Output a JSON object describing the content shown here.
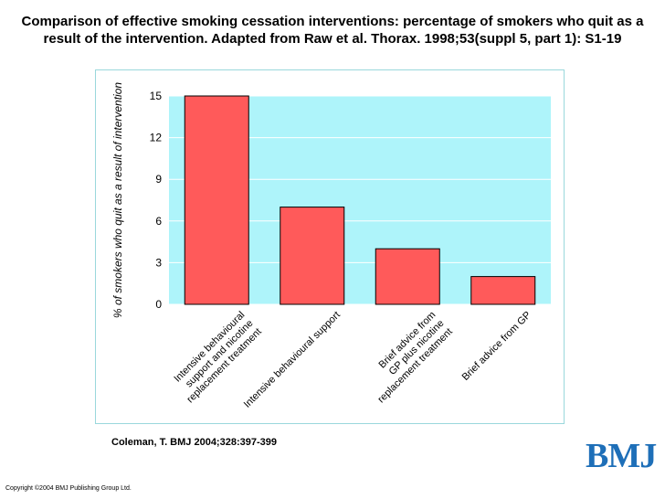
{
  "title": "Comparison of effective smoking cessation interventions: percentage of smokers who quit as a result of the intervention. Adapted from Raw et al. Thorax. 1998;53(suppl 5, part 1): S1-19",
  "citation": "Coleman, T. BMJ 2004;328:397-399",
  "copyright": "Copyright ©2004 BMJ Publishing Group Ltd.",
  "logo_text": "BMJ",
  "colors": {
    "plot_bg": "#aef4fa",
    "bar_fill": "#ff5a5a",
    "bar_stroke": "#000000",
    "grid": "#ffffff",
    "frame": "#9ad8dc",
    "logo": "#1e6fb8"
  },
  "chart_data": {
    "type": "bar",
    "title": "",
    "xlabel": "",
    "ylabel": "% of smokers who quit as a result of intervention",
    "ylim": [
      0,
      15
    ],
    "yticks": [
      0,
      3,
      6,
      9,
      12,
      15
    ],
    "grid": true,
    "categories": [
      [
        "Intensive behavioural",
        "support and nicotine",
        "replacement treatment"
      ],
      [
        "Intensive behavioural support"
      ],
      [
        "Brief advice from",
        "GP plus nicotine",
        "replacement treatment"
      ],
      [
        "Brief advice from GP"
      ]
    ],
    "values": [
      15,
      7,
      4,
      2
    ]
  }
}
